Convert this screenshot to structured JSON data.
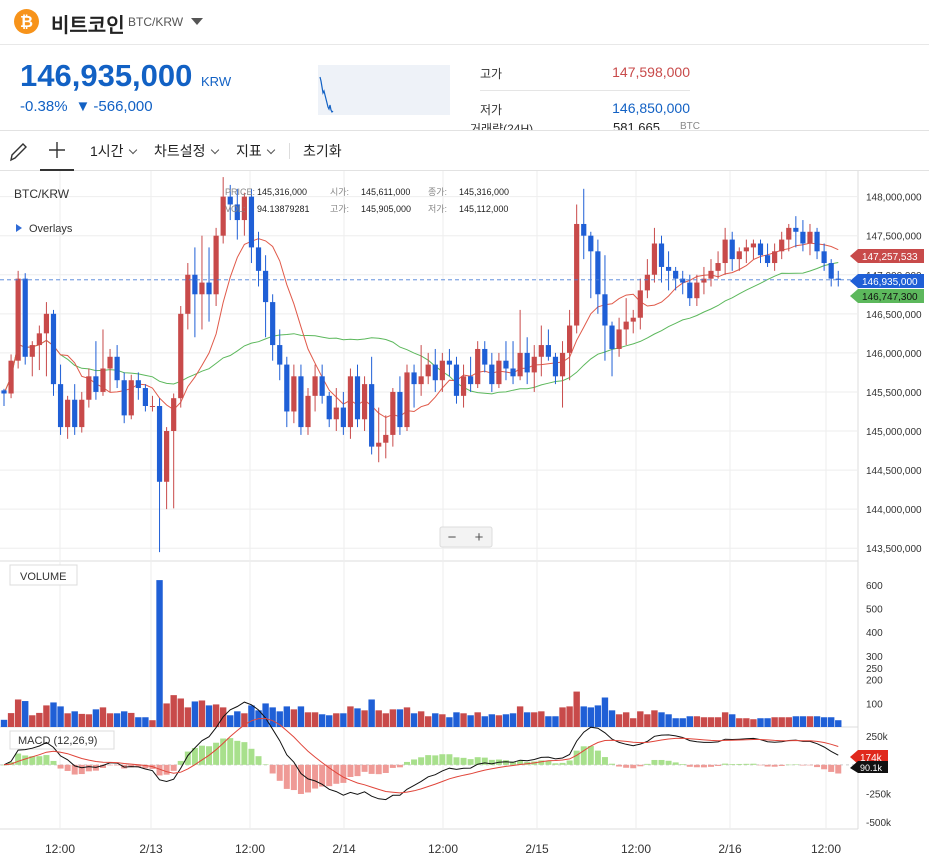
{
  "header": {
    "coin_logo": "₿",
    "coin_name": "비트코인",
    "pair": "BTC/KRW",
    "pair_dropdown_icon": "triangle-down-icon"
  },
  "ticker": {
    "price": "146,935,000",
    "unit": "KRW",
    "change_pct": "-0.38%",
    "change_arrow": "▼",
    "change_amount": "-566,000"
  },
  "stats": {
    "high_label": "고가",
    "high_value": "147,598,000",
    "low_label": "저가",
    "low_value": "146,850,000",
    "volume_label": "거래량(24H)",
    "volume_value": "581,665",
    "volume_unit": "BTC"
  },
  "toolbar": {
    "draw_icon": "pencil-icon",
    "crosshair_icon": "crosshair-icon",
    "interval": "1시간",
    "chart_settings": "차트설정",
    "indicators": "지표",
    "reset": "초기화"
  },
  "chart_overlay": {
    "symbol": "BTC/KRW",
    "overlays_label": "Overlays",
    "price_key": "PRICE:",
    "price_val": "145,316,000",
    "open_key": "시가:",
    "open_val": "145,611,000",
    "close_key": "종가:",
    "close_val": "145,316,000",
    "vol_key": "VOL:",
    "vol_val": "94.13879281",
    "high_key": "고가:",
    "high_val": "145,905,000",
    "low_key": "저가:",
    "low_val": "145,112,000",
    "zoom_out": "−",
    "zoom_in": "+",
    "volume_title": "VOLUME",
    "macd_title": "MACD (12,26,9)"
  },
  "price_tags": {
    "ma_upper": "147,257,533",
    "current": "146,935,000",
    "ma_lower": "146,747,300",
    "macd_upper": "174k",
    "macd_lower": "90.1k"
  },
  "colors": {
    "up": "#c84a4a",
    "down": "#1f5fd6",
    "ma_short": "#e05a4a",
    "ma_long": "#5cb85c",
    "accent": "#1261c4",
    "logo": "#f7931a"
  },
  "chart_data": [
    {
      "type": "candlestick",
      "title": "BTC/KRW",
      "y_ticks": [
        "143,500,000",
        "144,000,000",
        "144,500,000",
        "145,000,000",
        "145,500,000",
        "146,000,000",
        "146,500,000",
        "147,000,000",
        "147,500,000",
        "148,000,000"
      ],
      "ylim": [
        143400000,
        148200000
      ],
      "x_ticks": [
        "12:00",
        "2/13",
        "12:00",
        "2/14",
        "12:00",
        "2/15",
        "12:00",
        "2/16",
        "12:00"
      ],
      "candles": [
        [
          145520000,
          145540000,
          145320000,
          145480000
        ],
        [
          145480000,
          145980000,
          145420000,
          145900000
        ],
        [
          145900000,
          147050000,
          145800000,
          146950000
        ],
        [
          146950000,
          147020000,
          145850000,
          145950000
        ],
        [
          145950000,
          146150000,
          145700000,
          146100000
        ],
        [
          146100000,
          146350000,
          145780000,
          146250000
        ],
        [
          146250000,
          146650000,
          145700000,
          146500000
        ],
        [
          146500000,
          146550000,
          145450000,
          145600000
        ],
        [
          145600000,
          145850000,
          144950000,
          145050000
        ],
        [
          145050000,
          145450000,
          144900000,
          145400000
        ],
        [
          145400000,
          145600000,
          144950000,
          145050000
        ],
        [
          145050000,
          145500000,
          144980000,
          145400000
        ],
        [
          145400000,
          145800000,
          145300000,
          145700000
        ],
        [
          145700000,
          146150000,
          145400000,
          145500000
        ],
        [
          145500000,
          146300000,
          145450000,
          145800000
        ],
        [
          145800000,
          146050000,
          145500000,
          145950000
        ],
        [
          145950000,
          146100000,
          145550000,
          145650000
        ],
        [
          145650000,
          145750000,
          145100000,
          145200000
        ],
        [
          145200000,
          145720000,
          145150000,
          145650000
        ],
        [
          145650000,
          145750000,
          145400000,
          145550000
        ],
        [
          145550000,
          145600000,
          145250000,
          145320000
        ],
        [
          145320000,
          145450000,
          145250000,
          145320000
        ],
        [
          145320000,
          145420000,
          143450000,
          144350000
        ],
        [
          144350000,
          145050000,
          144000000,
          145000000
        ],
        [
          145000000,
          145480000,
          144010000,
          145420000
        ],
        [
          145420000,
          146600000,
          145300000,
          146500000
        ],
        [
          146500000,
          147150000,
          146300000,
          147000000
        ],
        [
          147000000,
          147350000,
          146200000,
          146750000
        ],
        [
          146750000,
          147500000,
          146300000,
          146900000
        ],
        [
          146900000,
          147350000,
          146400000,
          146750000
        ],
        [
          146750000,
          147600000,
          146600000,
          147500000
        ],
        [
          147500000,
          148250000,
          147400000,
          148000000
        ],
        [
          148000000,
          148150000,
          147700000,
          147900000
        ],
        [
          147900000,
          148100000,
          147450000,
          147700000
        ],
        [
          147700000,
          148050000,
          147500000,
          148000000
        ],
        [
          148000000,
          148100000,
          147150000,
          147350000
        ],
        [
          147350000,
          147550000,
          146850000,
          147050000
        ],
        [
          147050000,
          147250000,
          146200000,
          146650000
        ],
        [
          146650000,
          146750000,
          145900000,
          146100000
        ],
        [
          146100000,
          146300000,
          145650000,
          145850000
        ],
        [
          145850000,
          145950000,
          145050000,
          145250000
        ],
        [
          145250000,
          145850000,
          145100000,
          145700000
        ],
        [
          145700000,
          145850000,
          144950000,
          145050000
        ],
        [
          145050000,
          145550000,
          144950000,
          145450000
        ],
        [
          145450000,
          145850000,
          145250000,
          145700000
        ],
        [
          145700000,
          145850000,
          145350000,
          145450000
        ],
        [
          145450000,
          145500000,
          145050000,
          145150000
        ],
        [
          145150000,
          145550000,
          145000000,
          145300000
        ],
        [
          145300000,
          145500000,
          144950000,
          145050000
        ],
        [
          145050000,
          145800000,
          144900000,
          145700000
        ],
        [
          145700000,
          145850000,
          145050000,
          145150000
        ],
        [
          145150000,
          145700000,
          145000000,
          145600000
        ],
        [
          145600000,
          145950000,
          144700000,
          144800000
        ],
        [
          144800000,
          145300000,
          144600000,
          144850000
        ],
        [
          144850000,
          145200000,
          144650000,
          144950000
        ],
        [
          144950000,
          145550000,
          144800000,
          145500000
        ],
        [
          145500000,
          145700000,
          144950000,
          145050000
        ],
        [
          145050000,
          145850000,
          145000000,
          145750000
        ],
        [
          145750000,
          145850000,
          145300000,
          145600000
        ],
        [
          145600000,
          146100000,
          145450000,
          145700000
        ],
        [
          145700000,
          146000000,
          145600000,
          145850000
        ],
        [
          145850000,
          146050000,
          145500000,
          145650000
        ],
        [
          145650000,
          146000000,
          145500000,
          145900000
        ],
        [
          145900000,
          146050000,
          145700000,
          145850000
        ],
        [
          145850000,
          145950000,
          145350000,
          145450000
        ],
        [
          145450000,
          145850000,
          145300000,
          145700000
        ],
        [
          145700000,
          145950000,
          145500000,
          145600000
        ],
        [
          145600000,
          146150000,
          145550000,
          146050000
        ],
        [
          146050000,
          146150000,
          145750000,
          145850000
        ],
        [
          145850000,
          146000000,
          145500000,
          145600000
        ],
        [
          145600000,
          146000000,
          145550000,
          145900000
        ],
        [
          145900000,
          146150000,
          145650000,
          145800000
        ],
        [
          145800000,
          146150000,
          145600000,
          145700000
        ],
        [
          145700000,
          146550000,
          145650000,
          146000000
        ],
        [
          146000000,
          146200000,
          145600000,
          145750000
        ],
        [
          145750000,
          146100000,
          145500000,
          145950000
        ],
        [
          145950000,
          146350000,
          145700000,
          146100000
        ],
        [
          146100000,
          146300000,
          145900000,
          145950000
        ],
        [
          145950000,
          146000000,
          145600000,
          145700000
        ],
        [
          145700000,
          146150000,
          145300000,
          146000000
        ],
        [
          146000000,
          146550000,
          145650000,
          146350000
        ],
        [
          146350000,
          147900000,
          146250000,
          147650000
        ],
        [
          147650000,
          148100000,
          147200000,
          147500000
        ],
        [
          147500000,
          147550000,
          146700000,
          147300000
        ],
        [
          147300000,
          147450000,
          146500000,
          146750000
        ],
        [
          146750000,
          147250000,
          145900000,
          146350000
        ],
        [
          146350000,
          146400000,
          145700000,
          146050000
        ],
        [
          146050000,
          146450000,
          145950000,
          146300000
        ],
        [
          146300000,
          146700000,
          146100000,
          146400000
        ],
        [
          146400000,
          146550000,
          146250000,
          146450000
        ],
        [
          146450000,
          146950000,
          146300000,
          146800000
        ],
        [
          146800000,
          147200000,
          146700000,
          147000000
        ],
        [
          147000000,
          147600000,
          146900000,
          147400000
        ],
        [
          147400000,
          147500000,
          146900000,
          147100000
        ],
        [
          147100000,
          147300000,
          146800000,
          147050000
        ],
        [
          147050000,
          147100000,
          146800000,
          146950000
        ],
        [
          146950000,
          147050000,
          146750000,
          146900000
        ],
        [
          146900000,
          147000000,
          146600000,
          146700000
        ],
        [
          146700000,
          147000000,
          146600000,
          146900000
        ],
        [
          146900000,
          147100000,
          146750000,
          146950000
        ],
        [
          146950000,
          147200000,
          146850000,
          147050000
        ],
        [
          147050000,
          147300000,
          146950000,
          147150000
        ],
        [
          147150000,
          147600000,
          147000000,
          147450000
        ],
        [
          147450000,
          147550000,
          147050000,
          147200000
        ],
        [
          147200000,
          147350000,
          147050000,
          147300000
        ],
        [
          147300000,
          147450000,
          147150000,
          147350000
        ],
        [
          147350000,
          147450000,
          147200000,
          147400000
        ],
        [
          147400000,
          147450000,
          147150000,
          147250000
        ],
        [
          147250000,
          147400000,
          147100000,
          147150000
        ],
        [
          147150000,
          147400000,
          147050000,
          147300000
        ],
        [
          147300000,
          147550000,
          147200000,
          147450000
        ],
        [
          147450000,
          147650000,
          147300000,
          147600000
        ],
        [
          147600000,
          147750000,
          147350000,
          147550000
        ],
        [
          147550000,
          147700000,
          147300000,
          147400000
        ],
        [
          147400000,
          147650000,
          147250000,
          147550000
        ],
        [
          147550000,
          147600000,
          147200000,
          147300000
        ],
        [
          147300000,
          147400000,
          147050000,
          147150000
        ],
        [
          147150000,
          147200000,
          146850000,
          146950000
        ],
        [
          146950000,
          147050000,
          146850000,
          146935000
        ]
      ]
    },
    {
      "type": "bar",
      "title": "VOLUME",
      "y_ticks": [
        "100",
        "200",
        "250",
        "300",
        "400",
        "500",
        "600"
      ],
      "ylim": [
        0,
        650
      ]
    },
    {
      "type": "line",
      "title": "MACD (12,26,9)",
      "y_ticks": [
        "250k",
        "-250k",
        "-500k"
      ],
      "ylim": [
        -560000,
        330000
      ]
    }
  ]
}
